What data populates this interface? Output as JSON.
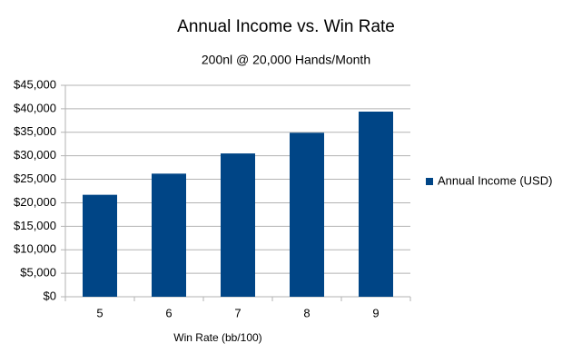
{
  "chart_data": {
    "type": "bar",
    "title": "Annual Income vs. Win Rate",
    "subtitle": "200nl @ 20,000 Hands/Month",
    "x_label": "Win Rate (bb/100)",
    "categories": [
      "5",
      "6",
      "7",
      "8",
      "9"
    ],
    "series": [
      {
        "name": "Annual Income (USD)",
        "color": "#004586",
        "values": [
          21700,
          26200,
          30500,
          34900,
          39400
        ]
      }
    ],
    "ylim": [
      0,
      45000
    ],
    "yticks": [
      {
        "value": 0,
        "label": "$0"
      },
      {
        "value": 5000,
        "label": "$5,000"
      },
      {
        "value": 10000,
        "label": "$10,000"
      },
      {
        "value": 15000,
        "label": "$15,000"
      },
      {
        "value": 20000,
        "label": "$20,000"
      },
      {
        "value": 25000,
        "label": "$25,000"
      },
      {
        "value": 30000,
        "label": "$30,000"
      },
      {
        "value": 35000,
        "label": "$35,000"
      },
      {
        "value": 40000,
        "label": "$40,000"
      },
      {
        "value": 45000,
        "label": "$45,000"
      }
    ],
    "grid": true,
    "legend": "right"
  }
}
